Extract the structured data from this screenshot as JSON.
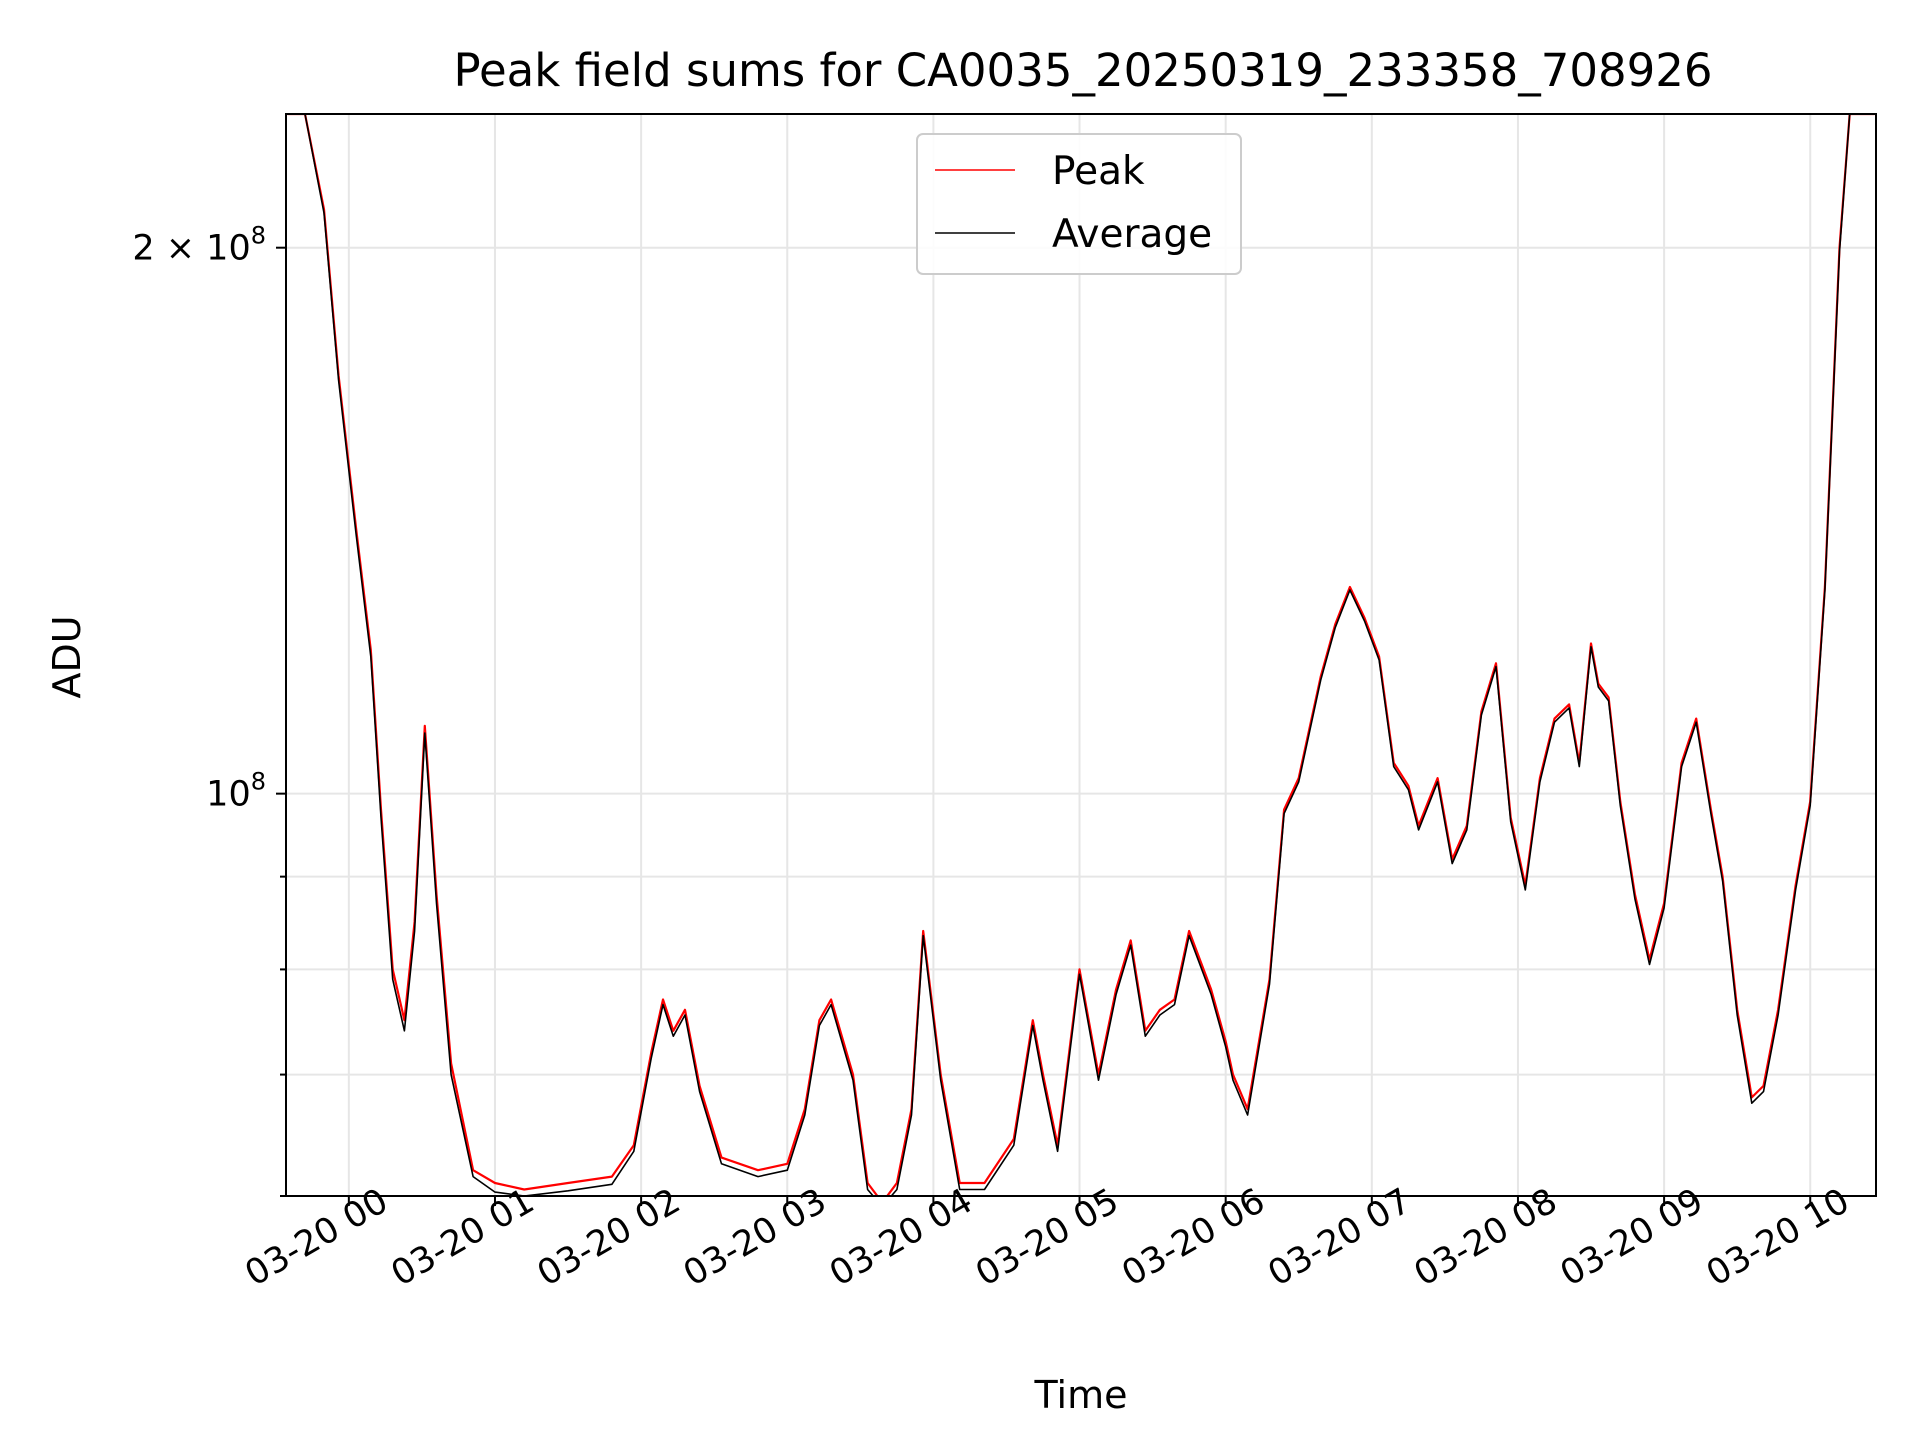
{
  "chart_data": {
    "type": "line",
    "title": "Peak field sums for CA0035_20250319_233358_708926",
    "xlabel": "Time",
    "ylabel": "ADU",
    "y_scale": "log",
    "grid": true,
    "legend_position": "upper center",
    "x_tick_labels": [
      "03-20 00",
      "03-20 01",
      "03-20 02",
      "03-20 03",
      "03-20 04",
      "03-20 05",
      "03-20 06",
      "03-20 07",
      "03-20 08",
      "03-20 09",
      "03-20 10"
    ],
    "y_tick_labels": [
      {
        "value": 100000000,
        "label": "10^8",
        "base": "10",
        "exp": "8"
      },
      {
        "value": 200000000,
        "label": "2 × 10^8",
        "base": "2 × 10",
        "exp": "8"
      }
    ],
    "x_range_hours": [
      -0.43,
      10.45
    ],
    "y_range": [
      60000000,
      237000000
    ],
    "colors": {
      "Peak": "#ff0000",
      "Average": "#000000"
    },
    "series": [
      {
        "name": "Peak",
        "x_hours": [
          -0.42,
          -0.3,
          -0.17,
          -0.07,
          0.05,
          0.15,
          0.22,
          0.3,
          0.38,
          0.45,
          0.52,
          0.6,
          0.7,
          0.85,
          1.0,
          1.2,
          1.5,
          1.8,
          1.95,
          2.07,
          2.15,
          2.22,
          2.3,
          2.4,
          2.55,
          2.8,
          3.0,
          3.12,
          3.22,
          3.3,
          3.45,
          3.55,
          3.65,
          3.75,
          3.85,
          3.93,
          4.05,
          4.18,
          4.35,
          4.55,
          4.68,
          4.75,
          4.85,
          5.0,
          5.13,
          5.25,
          5.35,
          5.45,
          5.55,
          5.65,
          5.75,
          5.9,
          6.0,
          6.05,
          6.15,
          6.3,
          6.4,
          6.5,
          6.65,
          6.75,
          6.85,
          6.95,
          7.05,
          7.15,
          7.25,
          7.32,
          7.45,
          7.55,
          7.65,
          7.75,
          7.85,
          7.95,
          8.05,
          8.15,
          8.25,
          8.35,
          8.42,
          8.5,
          8.55,
          8.62,
          8.7,
          8.8,
          8.9,
          9.0,
          9.12,
          9.22,
          9.32,
          9.4,
          9.5,
          9.6,
          9.68,
          9.78,
          9.9,
          10.0,
          10.1,
          10.2,
          10.27,
          10.4,
          10.44
        ],
        "values": [
          237000000,
          237000000,
          210000000,
          170000000,
          140000000,
          120000000,
          98000000,
          80000000,
          75000000,
          85000000,
          109000000,
          88000000,
          71000000,
          62000000,
          61000000,
          60500000,
          61000000,
          61500000,
          64000000,
          72000000,
          77000000,
          74000000,
          76000000,
          69000000,
          63000000,
          62000000,
          62500000,
          67000000,
          75000000,
          77000000,
          70000000,
          61000000,
          59500000,
          61000000,
          67000000,
          84000000,
          70000000,
          61000000,
          61000000,
          64500000,
          75000000,
          70000000,
          64000000,
          80000000,
          70000000,
          78000000,
          83000000,
          74000000,
          76000000,
          77000000,
          84000000,
          78000000,
          73000000,
          70000000,
          67000000,
          79000000,
          98000000,
          102000000,
          116000000,
          124000000,
          130000000,
          125000000,
          119000000,
          104000000,
          101000000,
          96000000,
          102000000,
          92000000,
          96000000,
          111000000,
          118000000,
          97000000,
          89000000,
          102000000,
          110000000,
          112000000,
          104000000,
          121000000,
          115000000,
          113000000,
          99000000,
          88000000,
          81000000,
          87000000,
          104000000,
          110000000,
          98000000,
          90000000,
          76000000,
          68000000,
          69000000,
          76000000,
          89000000,
          99000000,
          130000000,
          200000000,
          237000000,
          237000000,
          237000000
        ]
      },
      {
        "name": "Average",
        "x_hours": [
          -0.42,
          -0.3,
          -0.17,
          -0.07,
          0.05,
          0.15,
          0.22,
          0.3,
          0.38,
          0.45,
          0.52,
          0.6,
          0.7,
          0.85,
          1.0,
          1.2,
          1.5,
          1.8,
          1.95,
          2.07,
          2.15,
          2.22,
          2.3,
          2.4,
          2.55,
          2.8,
          3.0,
          3.12,
          3.22,
          3.3,
          3.45,
          3.55,
          3.65,
          3.75,
          3.85,
          3.93,
          4.05,
          4.18,
          4.35,
          4.55,
          4.68,
          4.75,
          4.85,
          5.0,
          5.13,
          5.25,
          5.35,
          5.45,
          5.55,
          5.65,
          5.75,
          5.9,
          6.0,
          6.05,
          6.15,
          6.3,
          6.4,
          6.5,
          6.65,
          6.75,
          6.85,
          6.95,
          7.05,
          7.15,
          7.25,
          7.32,
          7.45,
          7.55,
          7.65,
          7.75,
          7.85,
          7.95,
          8.05,
          8.15,
          8.25,
          8.35,
          8.42,
          8.5,
          8.55,
          8.62,
          8.7,
          8.8,
          8.9,
          9.0,
          9.12,
          9.22,
          9.32,
          9.4,
          9.5,
          9.6,
          9.68,
          9.78,
          9.9,
          10.0,
          10.1,
          10.2,
          10.27,
          10.4,
          10.44
        ],
        "values": [
          237000000,
          237000000,
          209000000,
          169000000,
          139000000,
          119000000,
          97000000,
          79000000,
          74000000,
          84000000,
          108000000,
          87000000,
          70000000,
          61500000,
          60300000,
          60000000,
          60400000,
          60900000,
          63500000,
          71500000,
          76500000,
          73500000,
          75500000,
          68500000,
          62500000,
          61500000,
          62000000,
          66500000,
          74500000,
          76500000,
          69500000,
          60500000,
          59200000,
          60500000,
          66500000,
          83500000,
          69500000,
          60500000,
          60500000,
          64000000,
          74500000,
          69500000,
          63500000,
          79500000,
          69500000,
          77500000,
          82500000,
          73500000,
          75500000,
          76500000,
          83500000,
          77500000,
          72500000,
          69500000,
          66500000,
          78500000,
          97500000,
          101500000,
          115500000,
          123500000,
          129500000,
          124500000,
          118500000,
          103500000,
          100500000,
          95500000,
          101500000,
          91500000,
          95500000,
          110500000,
          117500000,
          96500000,
          88500000,
          101500000,
          109500000,
          111500000,
          103500000,
          120500000,
          114500000,
          112500000,
          98500000,
          87500000,
          80500000,
          86500000,
          103500000,
          109500000,
          97500000,
          89500000,
          75500000,
          67500000,
          68500000,
          75500000,
          88500000,
          98500000,
          129500000,
          199000000,
          237000000,
          237000000,
          237000000
        ]
      }
    ]
  }
}
